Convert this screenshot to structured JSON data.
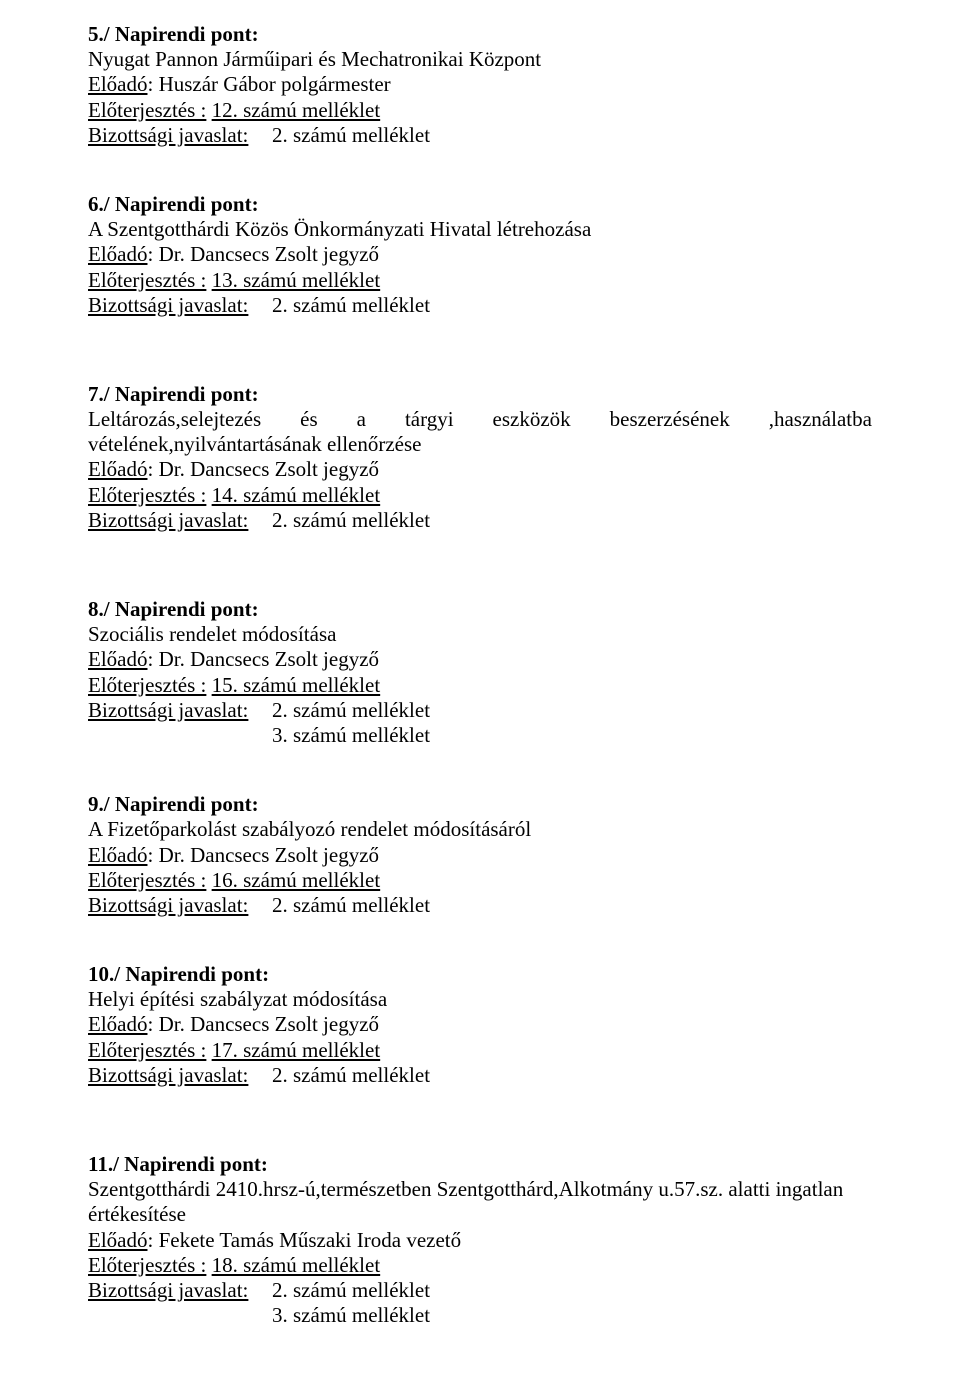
{
  "items": [
    {
      "heading": "5./ Napirendi pont:",
      "title": "Nyugat Pannon Járműipari és Mechatronikai Központ",
      "eloado_label": "Előadó",
      "eloado_value": "Huszár Gábor polgármester",
      "eloterjesztes_label": "Előterjesztés :",
      "eloterjesztes_value": "12. számú melléklet",
      "bizottsagi_label": "Bizottsági javaslat:",
      "bizottsagi_values": [
        "2. számú melléklet"
      ],
      "gap": "med"
    },
    {
      "heading": "6./ Napirendi pont:",
      "title": "A Szentgotthárdi Közös Önkormányzati Hivatal létrehozása",
      "eloado_label": "Előadó",
      "eloado_value": "Dr. Dancsecs Zsolt jegyző",
      "eloterjesztes_label": "Előterjesztés :",
      "eloterjesztes_value": "13. számú melléklet",
      "bizottsagi_label": "Bizottsági javaslat:",
      "bizottsagi_values": [
        "2. számú melléklet"
      ],
      "gap": "large"
    },
    {
      "heading": "7./ Napirendi pont:",
      "title_justified": [
        "Leltározás,selejtezés",
        "és",
        "a",
        "tárgyi",
        "eszközök",
        "beszerzésének",
        ",használatba"
      ],
      "title_line2": "vételének,nyilvántartásának ellenőrzése",
      "eloado_label": "Előadó",
      "eloado_value": "Dr. Dancsecs Zsolt jegyző",
      "eloterjesztes_label": "Előterjesztés :",
      "eloterjesztes_value": "14. számú melléklet",
      "bizottsagi_label": "Bizottsági javaslat:",
      "bizottsagi_values": [
        "2. számú melléklet"
      ],
      "gap": "large"
    },
    {
      "heading": "8./ Napirendi pont:",
      "title": "Szociális rendelet módosítása",
      "eloado_label": "Előadó",
      "eloado_value": "Dr. Dancsecs Zsolt jegyző",
      "eloterjesztes_label": "Előterjesztés :",
      "eloterjesztes_value": "15. számú melléklet",
      "bizottsagi_label": "Bizottsági javaslat:",
      "bizottsagi_values": [
        "2. számú melléklet",
        "3. számú melléklet"
      ],
      "gap": "med"
    },
    {
      "heading": "9./ Napirendi pont:",
      "title": "A Fizetőparkolást szabályozó rendelet módosításáról",
      "eloado_label": "Előadó",
      "eloado_value": "Dr. Dancsecs Zsolt jegyző",
      "eloterjesztes_label": "Előterjesztés :",
      "eloterjesztes_value": "16. számú melléklet",
      "bizottsagi_label": "Bizottsági javaslat:",
      "bizottsagi_values": [
        "2. számú melléklet"
      ],
      "gap": "med"
    },
    {
      "heading": "10./ Napirendi pont:",
      "title": "Helyi építési szabályzat módosítása",
      "eloado_label": "Előadó",
      "eloado_value": "Dr. Dancsecs Zsolt jegyző",
      "eloterjesztes_label": "Előterjesztés :",
      "eloterjesztes_value": "17. számú melléklet",
      "bizottsagi_label": "Bizottsági javaslat:",
      "bizottsagi_values": [
        "2. számú melléklet"
      ],
      "gap": "large"
    },
    {
      "heading": "11./ Napirendi pont:",
      "title": "Szentgotthárdi 2410.hrsz-ú,természetben Szentgotthárd,Alkotmány u.57.sz. alatti ingatlan értékesítése",
      "eloado_label": "Előadó",
      "eloado_value": "Fekete Tamás Műszaki Iroda vezető",
      "eloterjesztes_label": "Előterjesztés :",
      "eloterjesztes_value": "18. számú melléklet",
      "bizottsagi_label": "Bizottsági javaslat:",
      "bizottsagi_values": [
        "2. számú melléklet",
        "3. számú melléklet"
      ],
      "gap": "none"
    }
  ]
}
